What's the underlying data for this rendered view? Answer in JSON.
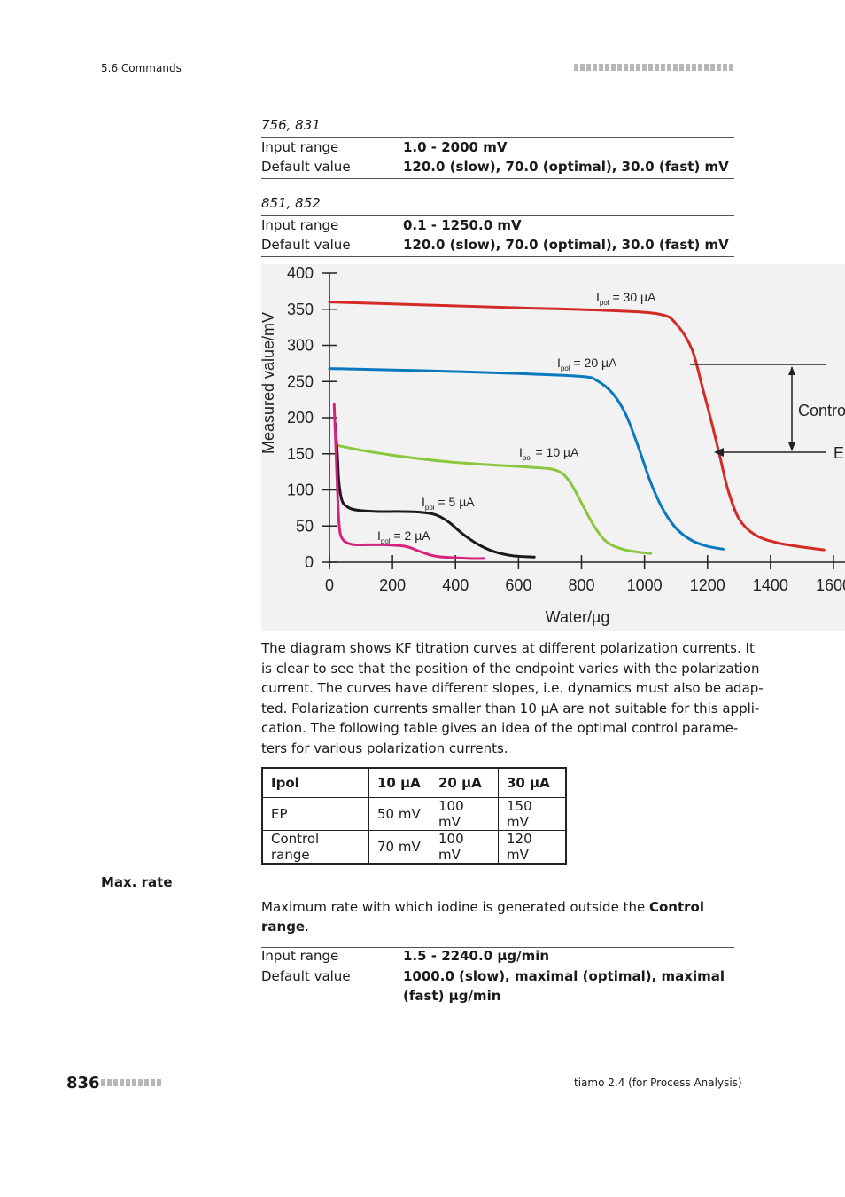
{
  "header": {
    "section": "5.6 Commands"
  },
  "block_756": {
    "model": "756, 831",
    "input_range_label": "Input range",
    "input_range_value": "1.0 - 2000 mV",
    "default_label": "Default value",
    "default_value": "120.0 (slow), 70.0 (optimal), 30.0 (fast) mV"
  },
  "block_851": {
    "model": "851, 852",
    "input_range_label": "Input range",
    "input_range_value": "0.1 - 1250.0 mV",
    "default_label": "Default value",
    "default_value": "120.0 (slow), 70.0 (optimal), 30.0 (fast) mV"
  },
  "chart_data": {
    "type": "line",
    "xlabel": "Water/µg",
    "ylabel": "Measured value/mV",
    "xlim": [
      0,
      1600
    ],
    "ylim": [
      0,
      400
    ],
    "x_ticks": [
      "0",
      "200",
      "400",
      "600",
      "800",
      "1000",
      "1200",
      "1400",
      "1600"
    ],
    "y_ticks": [
      "0",
      "50",
      "100",
      "150",
      "200",
      "250",
      "300",
      "350",
      "400"
    ],
    "series": [
      {
        "name": "Ipol = 30 µA",
        "label_main": "I",
        "label_sub": "pol",
        "label_rest": " = 30 µA",
        "color": "#d42a26",
        "x": [
          0,
          300,
          600,
          900,
          1050,
          1100,
          1150,
          1185,
          1215,
          1240,
          1265,
          1300,
          1350,
          1420,
          1500,
          1570
        ],
        "y": [
          360,
          356,
          352,
          348,
          343,
          330,
          295,
          240,
          190,
          145,
          100,
          60,
          38,
          27,
          21,
          17
        ]
      },
      {
        "name": "Ipol = 20 µA",
        "label_main": "I",
        "label_sub": "pol",
        "label_rest": " = 20 µA",
        "color": "#0a78bf",
        "x": [
          0,
          300,
          600,
          800,
          850,
          900,
          940,
          980,
          1020,
          1060,
          1100,
          1150,
          1200,
          1250
        ],
        "y": [
          268,
          265,
          261,
          257,
          251,
          233,
          205,
          160,
          110,
          72,
          47,
          30,
          22,
          18
        ]
      },
      {
        "name": "Ipol = 10 µA",
        "label_main": "I",
        "label_sub": "pol",
        "label_rest": " = 10 µA",
        "color": "#8cc63e",
        "x": [
          20,
          100,
          200,
          350,
          500,
          650,
          720,
          760,
          800,
          840,
          880,
          930,
          980,
          1020
        ],
        "y": [
          162,
          155,
          148,
          140,
          135,
          131,
          127,
          113,
          82,
          50,
          28,
          18,
          14,
          12
        ]
      },
      {
        "name": "Ipol = 5 µA",
        "label_main": "I",
        "label_sub": "pol",
        "label_rest": " = 5 µA",
        "color": "#1a1a1a",
        "x": [
          18,
          25,
          30,
          40,
          55,
          75,
          110,
          160,
          230,
          290,
          340,
          380,
          420,
          470,
          520,
          580,
          650
        ],
        "y": [
          192,
          150,
          110,
          85,
          77,
          73,
          71,
          70,
          70,
          69,
          65,
          55,
          40,
          25,
          15,
          9,
          7
        ]
      },
      {
        "name": "Ipol = 2 µA",
        "label_main": "I",
        "label_sub": "pol",
        "label_rest": " = 2 µA",
        "color": "#d6237d",
        "x": [
          15,
          20,
          25,
          30,
          35,
          45,
          60,
          80,
          120,
          170,
          240,
          280,
          320,
          360,
          400,
          450,
          490
        ],
        "y": [
          218,
          160,
          100,
          55,
          38,
          30,
          26,
          24,
          24,
          24,
          22,
          16,
          10,
          7,
          6,
          5,
          5
        ]
      }
    ],
    "annotations": {
      "control_text": "Contro",
      "ep_text": "E"
    }
  },
  "paragraph_lines": [
    "The diagram shows KF titration curves at different polarization currents. It",
    "is clear to see that the position of the endpoint varies with the polarization",
    "current. The curves have different slopes, i.e. dynamics must also be adap-",
    "ted. Polarization currents smaller than 10 µA are not suitable for this appli-",
    "cation. The following table gives an idea of the optimal control parame-",
    "ters for various polarization currents."
  ],
  "control_table": {
    "header": [
      "Ipol",
      "10 µA",
      "20 µA",
      "30 µA"
    ],
    "rows": [
      [
        "EP",
        "50 mV",
        "100 mV",
        "150 mV"
      ],
      [
        "Control range",
        "70 mV",
        "100 mV",
        "120 mV"
      ]
    ]
  },
  "max_rate": {
    "title": "Max. rate",
    "desc_prefix": "Maximum rate with which iodine is generated outside the ",
    "desc_bold": "Control range",
    "desc_suffix": ".",
    "input_range_label": "Input range",
    "input_range_value": "1.5 - 2240.0 µg/min",
    "default_label": "Default value",
    "default_value": "1000.0 (slow), maximal (optimal), maximal (fast) µg/min"
  },
  "footer": {
    "page_number": "836",
    "product": "tiamo 2.4 (for Process Analysis)"
  }
}
